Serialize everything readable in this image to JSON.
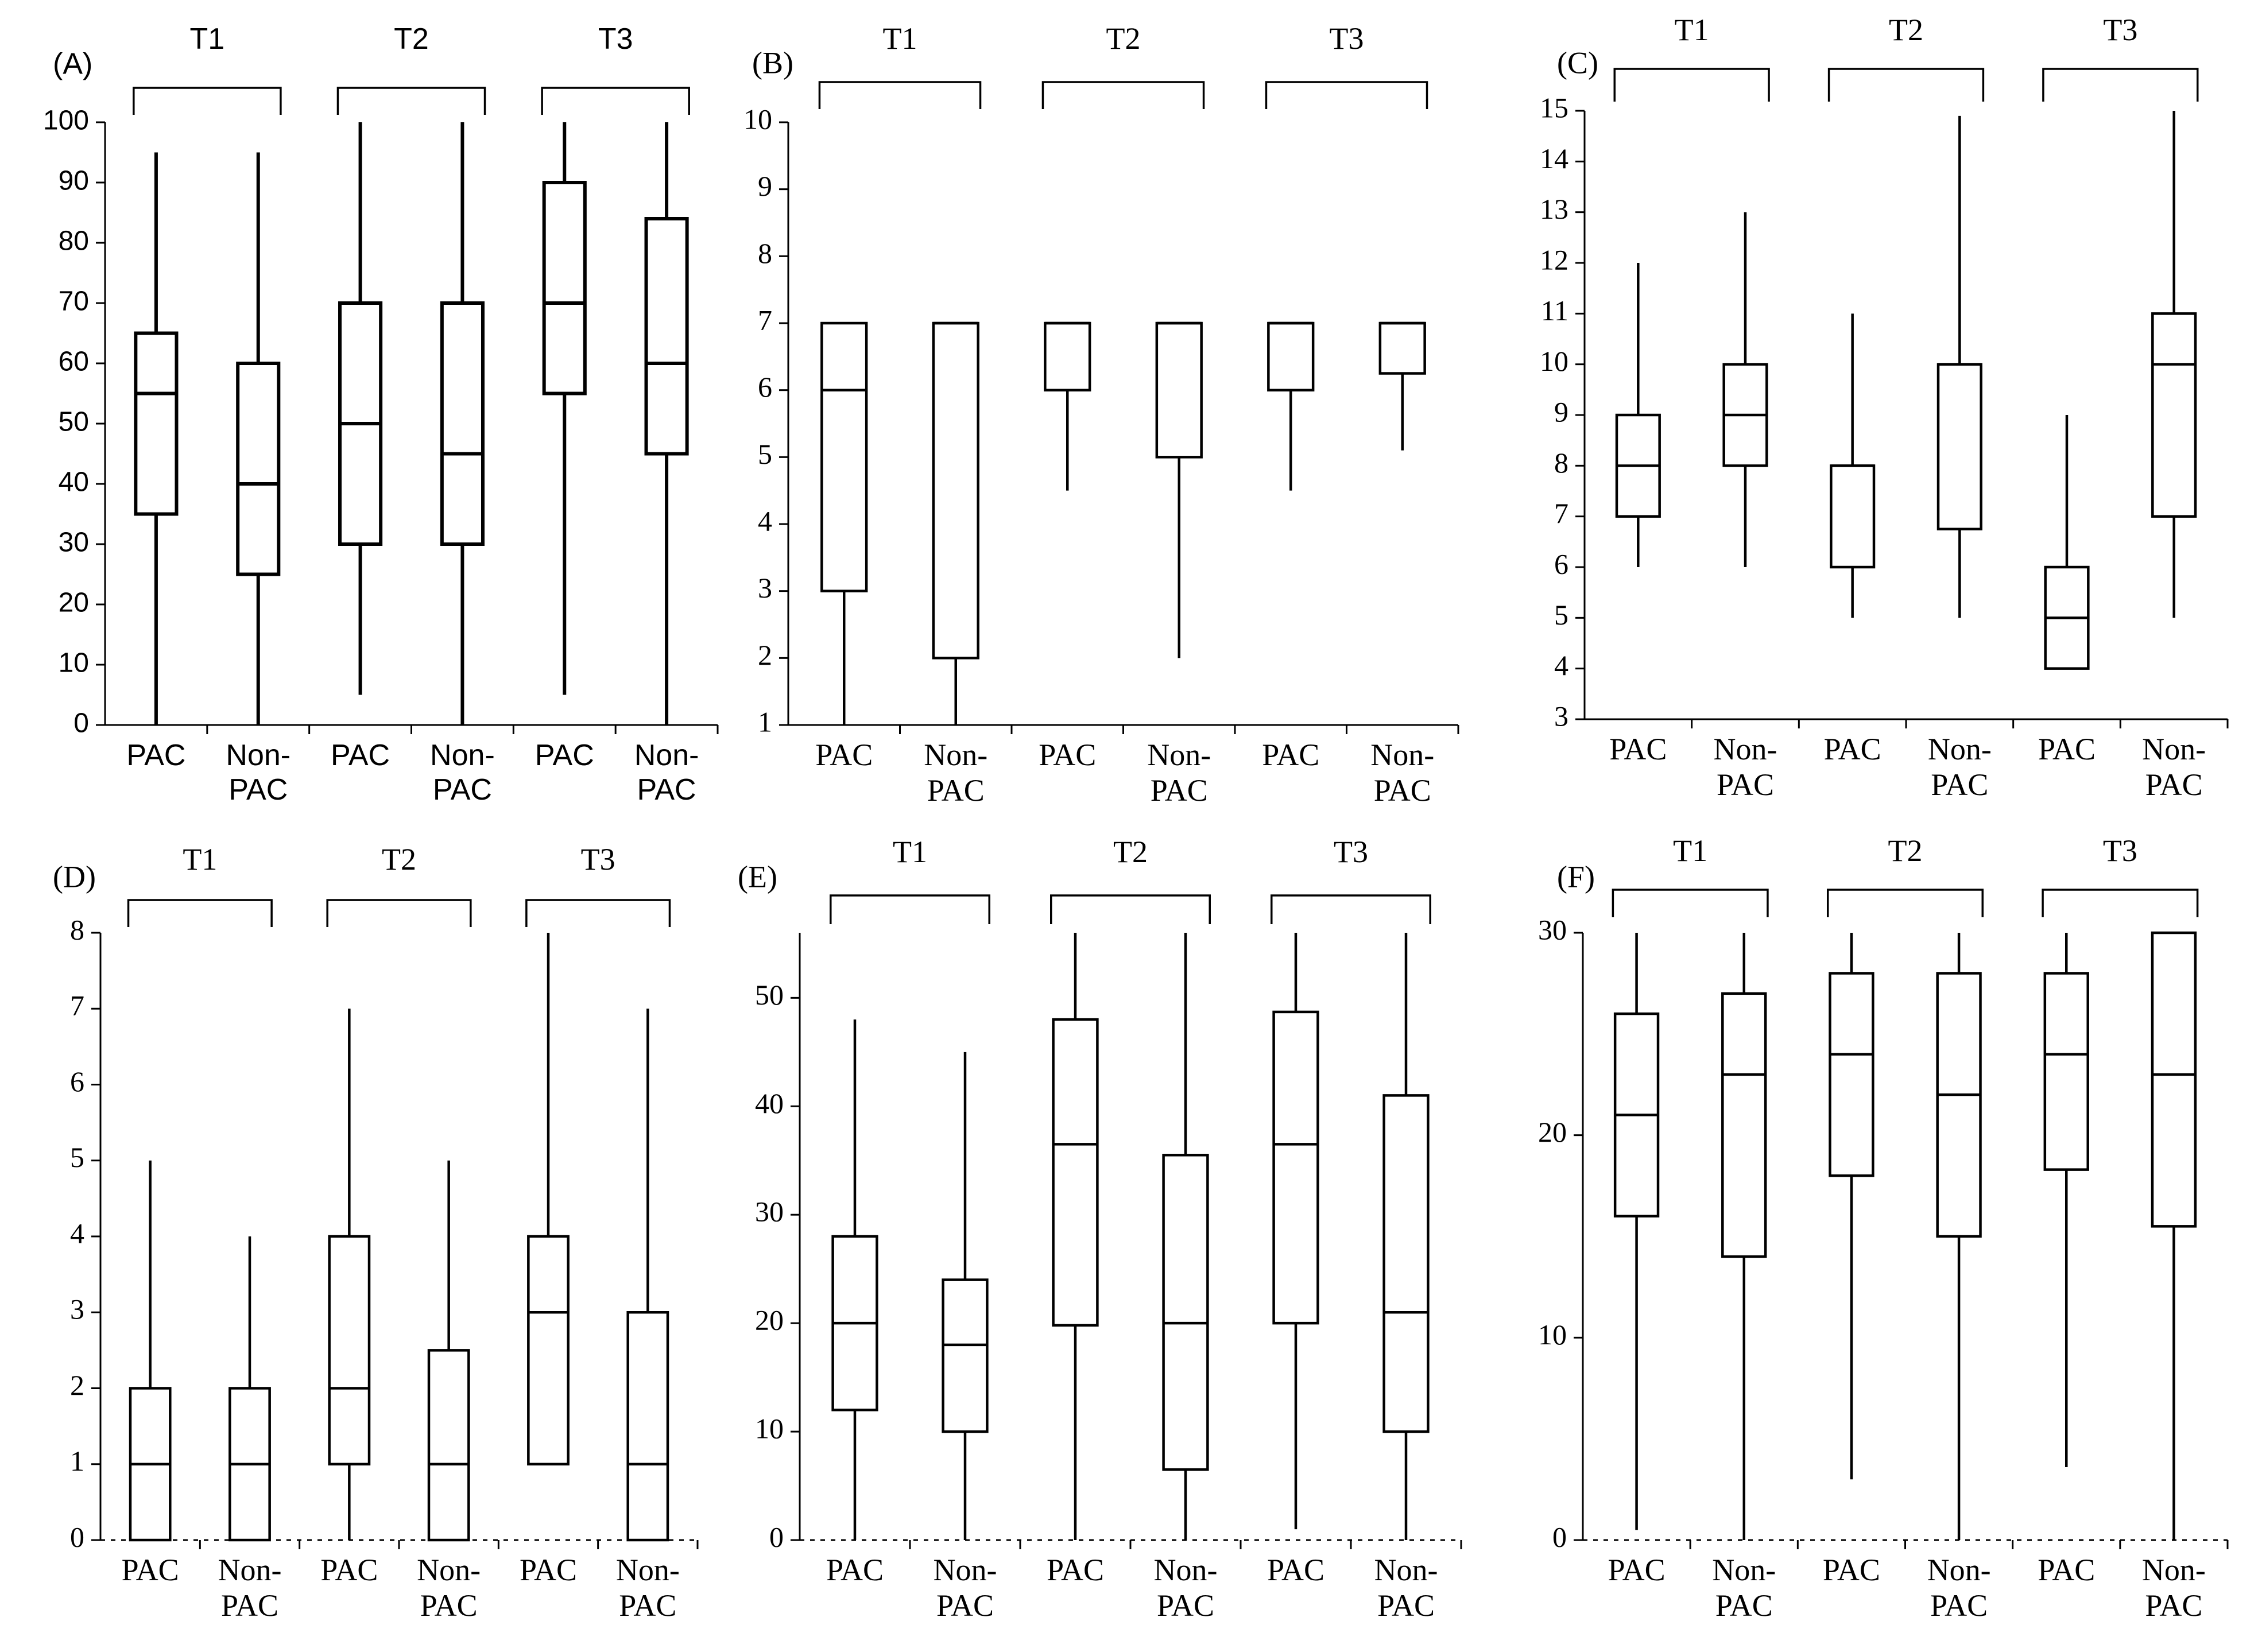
{
  "chart_data": [
    {
      "type": "box",
      "label": "(A)",
      "groups": [
        "T1",
        "T2",
        "T3"
      ],
      "categories": [
        "PAC",
        "Non-PAC",
        "PAC",
        "Non-PAC",
        "PAC",
        "Non-PAC"
      ],
      "ylim": [
        0,
        100
      ],
      "yticks": [
        0,
        10,
        20,
        30,
        40,
        50,
        60,
        70,
        80,
        90,
        100
      ],
      "boxes": [
        {
          "group": "T1",
          "category": "PAC",
          "min": 0,
          "q1": 35,
          "median": 55,
          "q3": 65,
          "max": 95
        },
        {
          "group": "T1",
          "category": "Non-PAC",
          "min": 0,
          "q1": 25,
          "median": 40,
          "q3": 60,
          "max": 95
        },
        {
          "group": "T2",
          "category": "PAC",
          "min": 5,
          "q1": 30,
          "median": 50,
          "q3": 70,
          "max": 100
        },
        {
          "group": "T2",
          "category": "Non-PAC",
          "min": 0,
          "q1": 30,
          "median": 45,
          "q3": 70,
          "max": 100
        },
        {
          "group": "T3",
          "category": "PAC",
          "min": 5,
          "q1": 55,
          "median": 70,
          "q3": 90,
          "max": 100
        },
        {
          "group": "T3",
          "category": "Non-PAC",
          "min": 0,
          "q1": 45,
          "median": 60,
          "q3": 84,
          "max": 100
        }
      ]
    },
    {
      "type": "box",
      "label": "(B)",
      "groups": [
        "T1",
        "T2",
        "T3"
      ],
      "categories": [
        "PAC",
        "Non-PAC",
        "PAC",
        "Non-PAC",
        "PAC",
        "Non-PAC"
      ],
      "ylim": [
        1,
        10
      ],
      "yticks": [
        1,
        2,
        3,
        4,
        5,
        6,
        7,
        8,
        9,
        10
      ],
      "boxes": [
        {
          "group": "T1",
          "category": "PAC",
          "min": 1,
          "q1": 3,
          "median": 6,
          "q3": 7,
          "max": 7
        },
        {
          "group": "T1",
          "category": "Non-PAC",
          "min": 1,
          "q1": 2,
          "median": 7,
          "q3": 7,
          "max": 7
        },
        {
          "group": "T2",
          "category": "PAC",
          "min": 4.5,
          "q1": 6,
          "median": 7,
          "q3": 7,
          "max": 7
        },
        {
          "group": "T2",
          "category": "Non-PAC",
          "min": 2,
          "q1": 5,
          "median": 7,
          "q3": 7,
          "max": 7
        },
        {
          "group": "T3",
          "category": "PAC",
          "min": 4.5,
          "q1": 6,
          "median": 7,
          "q3": 7,
          "max": 7
        },
        {
          "group": "T3",
          "category": "Non-PAC",
          "min": 5.1,
          "q1": 6.25,
          "median": 7,
          "q3": 7,
          "max": 7
        }
      ]
    },
    {
      "type": "box",
      "label": "(C)",
      "groups": [
        "T1",
        "T2",
        "T3"
      ],
      "categories": [
        "PAC",
        "Non-PAC",
        "PAC",
        "Non-PAC",
        "PAC",
        "Non-PAC"
      ],
      "ylim": [
        3,
        15
      ],
      "yticks": [
        3,
        4,
        5,
        6,
        7,
        8,
        9,
        10,
        11,
        12,
        13,
        14,
        15
      ],
      "boxes": [
        {
          "group": "T1",
          "category": "PAC",
          "min": 6,
          "q1": 7,
          "median": 8,
          "q3": 9,
          "max": 12
        },
        {
          "group": "T1",
          "category": "Non-PAC",
          "min": 6,
          "q1": 8,
          "median": 9,
          "q3": 10,
          "max": 13
        },
        {
          "group": "T2",
          "category": "PAC",
          "min": 5,
          "q1": 6,
          "median": 8,
          "q3": 8,
          "max": 11
        },
        {
          "group": "T2",
          "category": "Non-PAC",
          "min": 5,
          "q1": 6.75,
          "median": 10,
          "q3": 10,
          "max": 14.9
        },
        {
          "group": "T3",
          "category": "PAC",
          "min": 4,
          "q1": 4,
          "median": 5,
          "q3": 6,
          "max": 9
        },
        {
          "group": "T3",
          "category": "Non-PAC",
          "min": 5,
          "q1": 7,
          "median": 10,
          "q3": 11,
          "max": 15
        }
      ]
    },
    {
      "type": "box",
      "label": "(D)",
      "groups": [
        "T1",
        "T2",
        "T3"
      ],
      "categories": [
        "PAC",
        "Non-PAC",
        "PAC",
        "Non-PAC",
        "PAC",
        "Non-PAC"
      ],
      "ylim": [
        0,
        8
      ],
      "yticks": [
        0,
        1,
        2,
        3,
        4,
        5,
        6,
        7,
        8
      ],
      "boxes": [
        {
          "group": "T1",
          "category": "PAC",
          "min": 0,
          "q1": 0,
          "median": 1,
          "q3": 2,
          "max": 5
        },
        {
          "group": "T1",
          "category": "Non-PAC",
          "min": 0,
          "q1": 0,
          "median": 1,
          "q3": 2,
          "max": 4
        },
        {
          "group": "T2",
          "category": "PAC",
          "min": 0,
          "q1": 1,
          "median": 2,
          "q3": 4,
          "max": 7
        },
        {
          "group": "T2",
          "category": "Non-PAC",
          "min": 0,
          "q1": 0,
          "median": 1,
          "q3": 2.5,
          "max": 5
        },
        {
          "group": "T3",
          "category": "PAC",
          "min": 1,
          "q1": 1,
          "median": 3,
          "q3": 4,
          "max": 8
        },
        {
          "group": "T3",
          "category": "Non-PAC",
          "min": 0,
          "q1": 0,
          "median": 1,
          "q3": 3,
          "max": 7
        }
      ]
    },
    {
      "type": "box",
      "label": "(E)",
      "groups": [
        "T1",
        "T2",
        "T3"
      ],
      "categories": [
        "PAC",
        "Non-PAC",
        "PAC",
        "Non-PAC",
        "PAC",
        "Non-PAC"
      ],
      "ylim": [
        0,
        56
      ],
      "yticks": [
        0,
        10,
        20,
        30,
        40,
        50
      ],
      "boxes": [
        {
          "group": "T1",
          "category": "PAC",
          "min": 0,
          "q1": 12,
          "median": 20,
          "q3": 28,
          "max": 48
        },
        {
          "group": "T1",
          "category": "Non-PAC",
          "min": 0,
          "q1": 10,
          "median": 18,
          "q3": 24,
          "max": 45
        },
        {
          "group": "T2",
          "category": "PAC",
          "min": 0,
          "q1": 19.8,
          "median": 36.5,
          "q3": 48,
          "max": 56
        },
        {
          "group": "T2",
          "category": "Non-PAC",
          "min": 0,
          "q1": 6.5,
          "median": 20,
          "q3": 35.5,
          "max": 56
        },
        {
          "group": "T3",
          "category": "PAC",
          "min": 1,
          "q1": 20,
          "median": 36.5,
          "q3": 48.7,
          "max": 56
        },
        {
          "group": "T3",
          "category": "Non-PAC",
          "min": 0,
          "q1": 10,
          "median": 21,
          "q3": 41,
          "max": 56
        }
      ]
    },
    {
      "type": "box",
      "label": "(F)",
      "groups": [
        "T1",
        "T2",
        "T3"
      ],
      "categories": [
        "PAC",
        "Non-PAC",
        "PAC",
        "Non-PAC",
        "PAC",
        "Non-PAC"
      ],
      "ylim": [
        0,
        30
      ],
      "yticks": [
        0,
        10,
        20,
        30
      ],
      "boxes": [
        {
          "group": "T1",
          "category": "PAC",
          "min": 0.5,
          "q1": 16,
          "median": 21,
          "q3": 26,
          "max": 30
        },
        {
          "group": "T1",
          "category": "Non-PAC",
          "min": 0,
          "q1": 14,
          "median": 23,
          "q3": 27,
          "max": 30
        },
        {
          "group": "T2",
          "category": "PAC",
          "min": 3,
          "q1": 18,
          "median": 24,
          "q3": 28,
          "max": 30
        },
        {
          "group": "T2",
          "category": "Non-PAC",
          "min": 0,
          "q1": 15,
          "median": 22,
          "q3": 28,
          "max": 30
        },
        {
          "group": "T3",
          "category": "PAC",
          "min": 3.6,
          "q1": 18.3,
          "median": 24,
          "q3": 28,
          "max": 30
        },
        {
          "group": "T3",
          "category": "Non-PAC",
          "min": 0,
          "q1": 15.5,
          "median": 23,
          "q3": 30,
          "max": 30
        }
      ]
    }
  ]
}
